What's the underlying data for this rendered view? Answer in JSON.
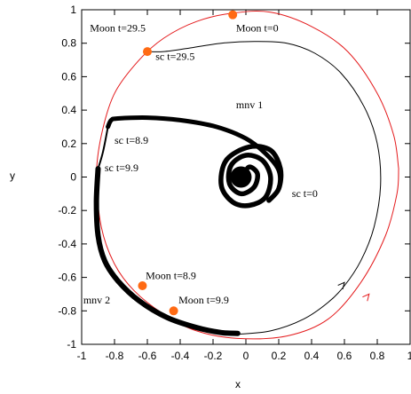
{
  "chart_data": {
    "type": "line",
    "title": "",
    "xlabel": "x",
    "ylabel": "y",
    "xlim": [
      -1,
      1
    ],
    "ylim": [
      -1,
      1
    ],
    "x_ticks": [
      "-1",
      "-0.8",
      "-0.6",
      "-0.4",
      "-0.2",
      "0",
      "0.2",
      "0.4",
      "0.6",
      "0.8",
      "1"
    ],
    "y_ticks": [
      "1",
      "0.8",
      "0.6",
      "0.4",
      "0.2",
      "0",
      "-0.2",
      "-0.4",
      "-0.6",
      "-0.8",
      "-1"
    ],
    "grid": false,
    "colors": {
      "moon_orbit": "#e41a1c",
      "trajectory": "#000000",
      "moon_marker": "#ff6a13"
    },
    "series": [
      {
        "kind": "moon_orbit",
        "points": [
          [
            0.93,
            0.05
          ],
          [
            0.9,
            0.25
          ],
          [
            0.8,
            0.5
          ],
          [
            0.62,
            0.75
          ],
          [
            0.4,
            0.9
          ],
          [
            0.15,
            0.985
          ],
          [
            -0.08,
            0.98
          ],
          [
            -0.3,
            0.93
          ],
          [
            -0.5,
            0.83
          ],
          [
            -0.65,
            0.7
          ],
          [
            -0.8,
            0.5
          ],
          [
            -0.88,
            0.25
          ],
          [
            -0.91,
            0
          ],
          [
            -0.88,
            -0.3
          ],
          [
            -0.8,
            -0.52
          ],
          [
            -0.68,
            -0.68
          ],
          [
            -0.5,
            -0.82
          ],
          [
            -0.3,
            -0.92
          ],
          [
            -0.05,
            -0.965
          ],
          [
            0.25,
            -0.95
          ],
          [
            0.5,
            -0.85
          ],
          [
            0.7,
            -0.63
          ],
          [
            0.85,
            -0.35
          ],
          [
            0.92,
            -0.1
          ],
          [
            0.93,
            0.05
          ]
        ]
      },
      {
        "kind": "spiral",
        "points": [
          [
            -0.02,
            0
          ],
          [
            0.02,
            0.06
          ],
          [
            0.07,
            0.02
          ],
          [
            0.05,
            -0.06
          ],
          [
            -0.03,
            -0.1
          ],
          [
            -0.1,
            -0.04
          ],
          [
            -0.09,
            0.07
          ],
          [
            0,
            0.13
          ],
          [
            0.1,
            0.1
          ],
          [
            0.15,
            0
          ],
          [
            0.12,
            -0.12
          ],
          [
            0.02,
            -0.17
          ],
          [
            -0.08,
            -0.15
          ],
          [
            -0.15,
            -0.05
          ],
          [
            -0.12,
            0.1
          ],
          [
            0.02,
            0.18
          ],
          [
            0.15,
            0.16
          ],
          [
            0.21,
            0.05
          ],
          [
            0.2,
            -0.07
          ],
          [
            0.14,
            -0.14
          ]
        ]
      },
      {
        "kind": "mnv1_arc",
        "points": [
          [
            0.14,
            -0.14
          ],
          [
            0.2,
            -0.07
          ],
          [
            0.2,
            0.04
          ],
          [
            0.12,
            0.14
          ],
          [
            0,
            0.23
          ],
          [
            -0.18,
            0.3
          ],
          [
            -0.4,
            0.34
          ],
          [
            -0.6,
            0.355
          ],
          [
            -0.78,
            0.35
          ],
          [
            -0.82,
            0.34
          ],
          [
            -0.84,
            0.3
          ]
        ]
      },
      {
        "kind": "coast_to_mnv2",
        "points": [
          [
            -0.84,
            0.3
          ],
          [
            -0.87,
            0.15
          ],
          [
            -0.9,
            0.05
          ]
        ]
      },
      {
        "kind": "mnv2_arc",
        "points": [
          [
            -0.9,
            0.05
          ],
          [
            -0.91,
            -0.15
          ],
          [
            -0.9,
            -0.35
          ],
          [
            -0.86,
            -0.5
          ],
          [
            -0.78,
            -0.62
          ],
          [
            -0.65,
            -0.74
          ],
          [
            -0.48,
            -0.84
          ],
          [
            -0.3,
            -0.9
          ],
          [
            -0.15,
            -0.93
          ],
          [
            -0.05,
            -0.935
          ]
        ]
      },
      {
        "kind": "transfer",
        "points": [
          [
            -0.05,
            -0.94
          ],
          [
            0.15,
            -0.92
          ],
          [
            0.35,
            -0.85
          ],
          [
            0.5,
            -0.75
          ],
          [
            0.6,
            -0.65
          ],
          [
            0.7,
            -0.5
          ],
          [
            0.78,
            -0.3
          ],
          [
            0.82,
            -0.05
          ],
          [
            0.8,
            0.2
          ],
          [
            0.72,
            0.42
          ],
          [
            0.58,
            0.62
          ],
          [
            0.42,
            0.74
          ],
          [
            0.25,
            0.8
          ],
          [
            0.05,
            0.81
          ],
          [
            -0.15,
            0.8
          ],
          [
            -0.35,
            0.77
          ],
          [
            -0.5,
            0.75
          ],
          [
            -0.6,
            0.75
          ]
        ]
      }
    ],
    "moon_points": [
      {
        "label": "Moon t=0",
        "x": -0.08,
        "y": 0.97
      },
      {
        "label": "Moon t=29.5",
        "x": -0.6,
        "y": 0.75
      },
      {
        "label": "Moon t=8.9",
        "x": -0.63,
        "y": -0.65
      },
      {
        "label": "Moon t=9.9",
        "x": -0.44,
        "y": -0.8
      }
    ],
    "arrows": [
      {
        "from": [
          0.54,
          -0.7
        ],
        "to": [
          0.6,
          -0.63
        ]
      },
      {
        "from": [
          0.69,
          -0.77
        ],
        "to": [
          0.75,
          -0.7
        ]
      }
    ],
    "annotations": [
      {
        "text": "Moon t=29.5",
        "x": -0.95,
        "y": 0.87
      },
      {
        "text": "Moon t=0",
        "x": -0.06,
        "y": 0.87
      },
      {
        "text": "sc t=29.5",
        "x": -0.55,
        "y": 0.7
      },
      {
        "text": "mnv 1",
        "x": -0.06,
        "y": 0.41
      },
      {
        "text": "sc t=8.9",
        "x": -0.8,
        "y": 0.2
      },
      {
        "text": "sc t=9.9",
        "x": -0.86,
        "y": 0.035
      },
      {
        "text": "sc t=0",
        "x": 0.28,
        "y": -0.12
      },
      {
        "text": "Moon t=8.9",
        "x": -0.61,
        "y": -0.61
      },
      {
        "text": "Moon t=9.9",
        "x": -0.41,
        "y": -0.755
      },
      {
        "text": "mnv 2",
        "x": -0.99,
        "y": -0.755
      }
    ]
  }
}
